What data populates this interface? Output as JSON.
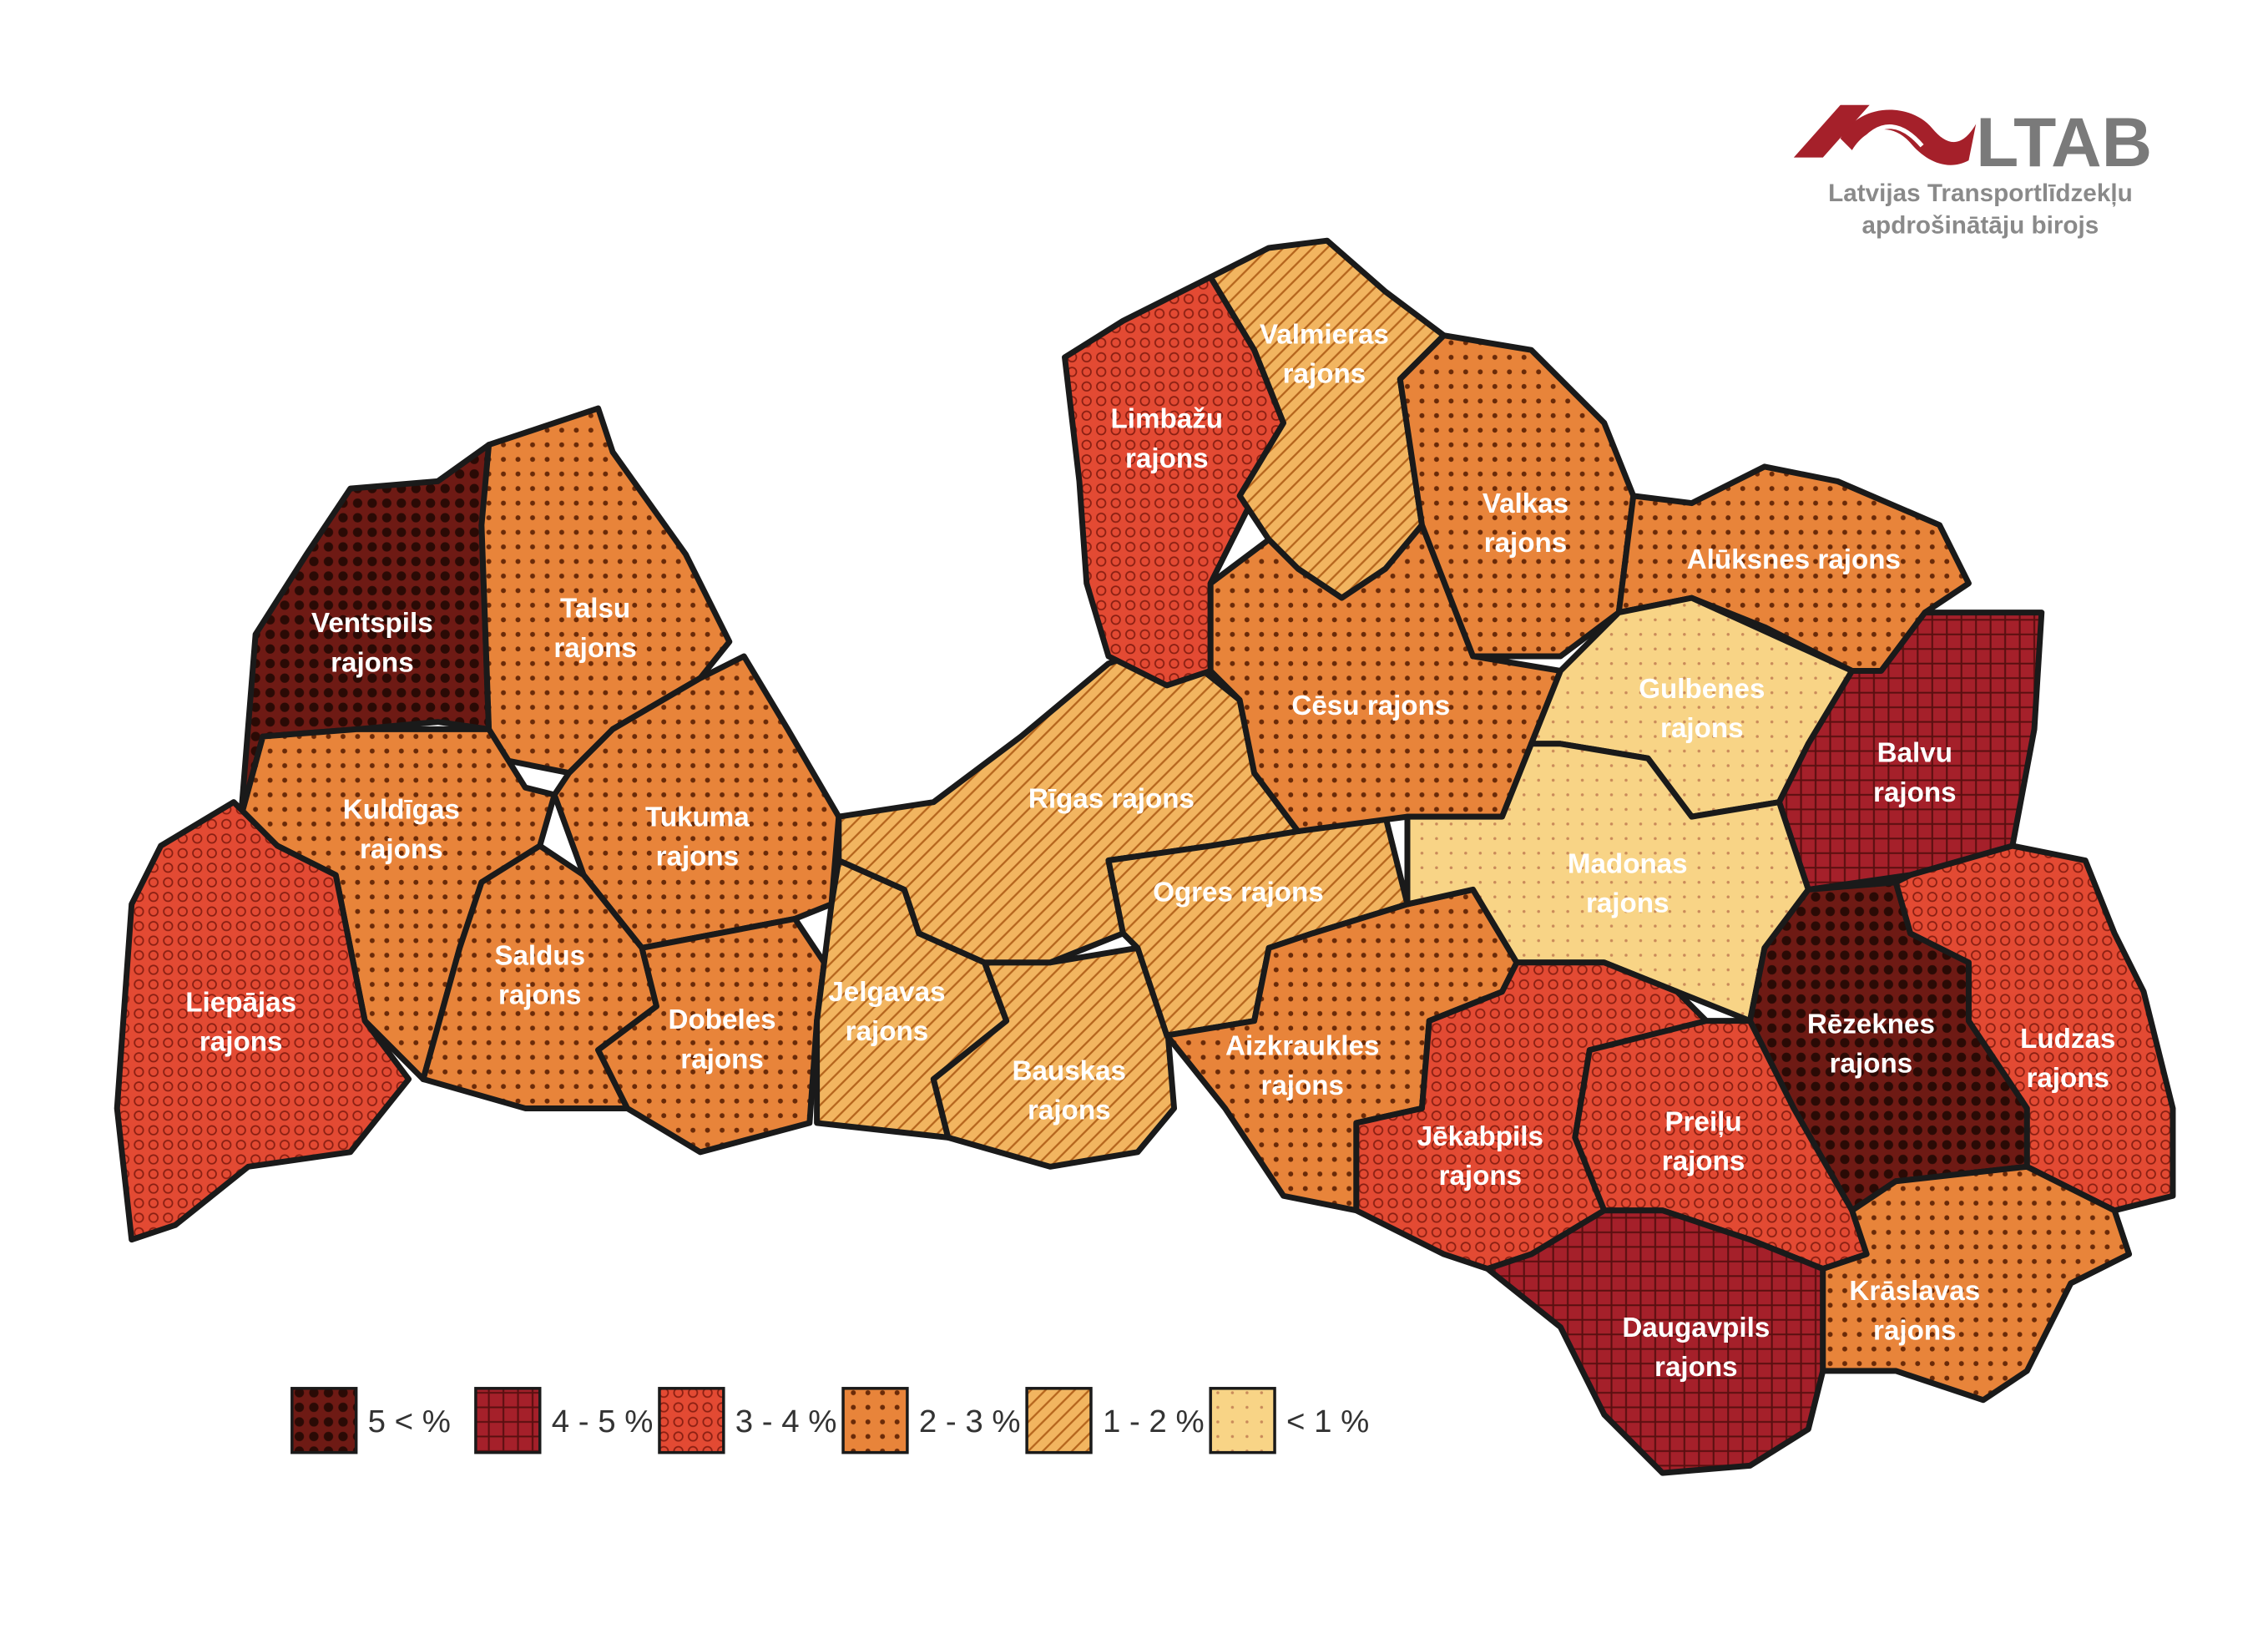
{
  "logo": {
    "title": "LTAB",
    "subtitle": [
      "Latvijas Transportlīdzekļu",
      "apdrošinātāju birojs"
    ]
  },
  "legend": [
    {
      "label": "5 < %",
      "color": "#6e1a14"
    },
    {
      "label": "4 - 5 %",
      "color": "#a5202a"
    },
    {
      "label": "3 - 4 %",
      "color": "#e34a33"
    },
    {
      "label": "2 - 3 %",
      "color": "#e8843a"
    },
    {
      "label": "1 - 2 %",
      "color": "#f2b560"
    },
    {
      "label": "< 1 %",
      "color": "#f8d486"
    }
  ],
  "regions": [
    {
      "lines": [
        "Ventspils",
        "rajons"
      ],
      "class": 0
    },
    {
      "lines": [
        "Talsu",
        "rajons"
      ],
      "class": 3
    },
    {
      "lines": [
        "Kuldīgas",
        "rajons"
      ],
      "class": 3
    },
    {
      "lines": [
        "Liepājas",
        "rajons"
      ],
      "class": 2
    },
    {
      "lines": [
        "Tukuma",
        "rajons"
      ],
      "class": 3
    },
    {
      "lines": [
        "Saldus",
        "rajons"
      ],
      "class": 3
    },
    {
      "lines": [
        "Dobeles",
        "rajons"
      ],
      "class": 3
    },
    {
      "lines": [
        "Jelgavas",
        "rajons"
      ],
      "class": 4
    },
    {
      "lines": [
        "Bauskas",
        "rajons"
      ],
      "class": 4
    },
    {
      "lines": [
        "Rīgas rajons"
      ],
      "class": 4
    },
    {
      "lines": [
        "Ogres rajons"
      ],
      "class": 4
    },
    {
      "lines": [
        "Aizkraukles",
        "rajons"
      ],
      "class": 3
    },
    {
      "lines": [
        "Limbažu",
        "rajons"
      ],
      "class": 2
    },
    {
      "lines": [
        "Valmieras",
        "rajons"
      ],
      "class": 4
    },
    {
      "lines": [
        "Cēsu rajons"
      ],
      "class": 3
    },
    {
      "lines": [
        "Valkas",
        "rajons"
      ],
      "class": 3
    },
    {
      "lines": [
        "Alūksnes rajons"
      ],
      "class": 3
    },
    {
      "lines": [
        "Gulbenes",
        "rajons"
      ],
      "class": 5
    },
    {
      "lines": [
        "Balvu",
        "rajons"
      ],
      "class": 1
    },
    {
      "lines": [
        "Madonas",
        "rajons"
      ],
      "class": 5
    },
    {
      "lines": [
        "Rēzeknes",
        "rajons"
      ],
      "class": 0
    },
    {
      "lines": [
        "Ludzas",
        "rajons"
      ],
      "class": 2
    },
    {
      "lines": [
        "Jēkabpils",
        "rajons"
      ],
      "class": 2
    },
    {
      "lines": [
        "Preiļu",
        "rajons"
      ],
      "class": 2
    },
    {
      "lines": [
        "Daugavpils",
        "rajons"
      ],
      "class": 1
    },
    {
      "lines": [
        "Krāslavas",
        "rajons"
      ],
      "class": 3
    }
  ]
}
